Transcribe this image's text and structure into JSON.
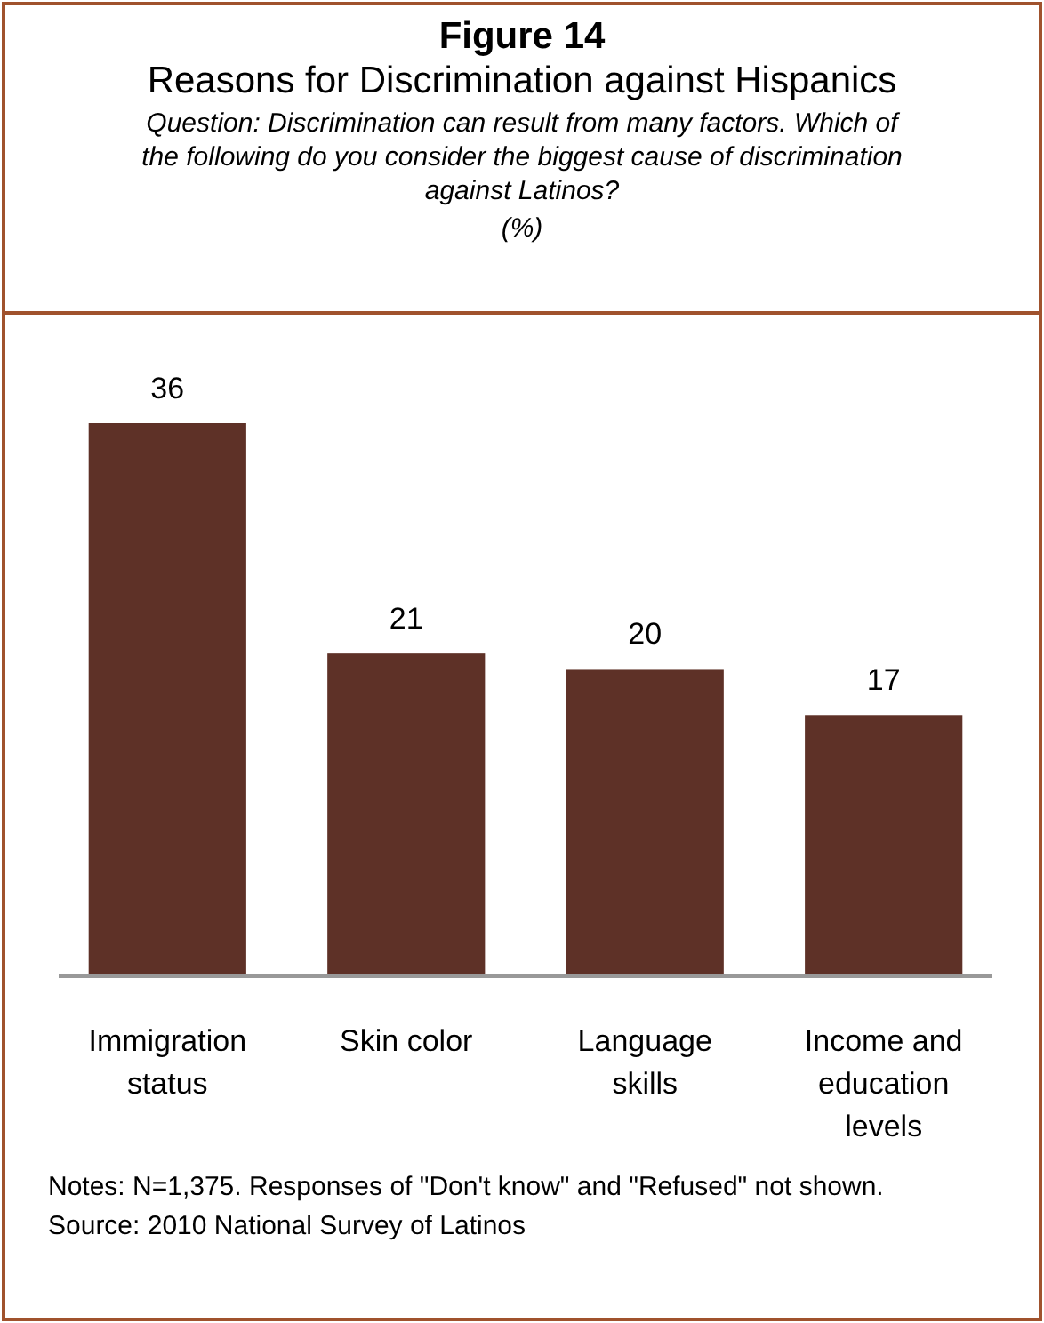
{
  "chart_data": {
    "type": "bar",
    "title": "Figure 14",
    "subtitle": "Reasons for Discrimination against Hispanics",
    "annotations": [
      "Question: Discrimination can result from many factors. Which of the following do you consider the biggest cause of discrimination against  Latinos?",
      "(%)",
      "Notes: N=1,375. Responses of \"Don't know\" and \"Refused\" not shown.",
      "Source: 2010 National Survey of Latinos"
    ],
    "categories": [
      "Immigration status",
      "Skin color",
      "Language skills",
      "Income and education levels"
    ],
    "values": [
      36,
      21,
      20,
      17
    ],
    "color": "#5e3127",
    "data_labels": true
  }
}
